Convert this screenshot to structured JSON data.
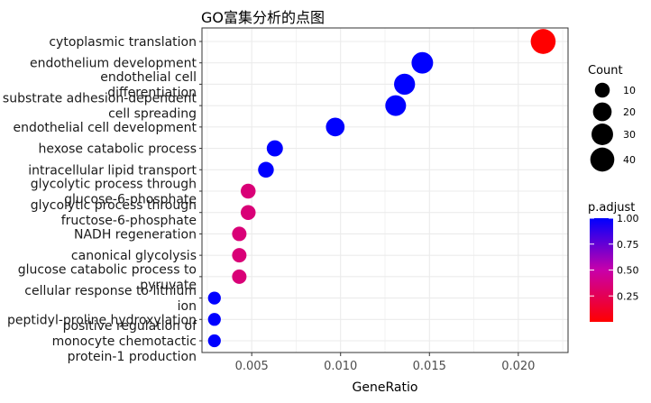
{
  "chart_data": {
    "type": "scatter",
    "title": "GO富集分析的点图",
    "xlabel": "GeneRatio",
    "ylabel": "",
    "xlim": [
      0.0022,
      0.0228
    ],
    "xticks": [
      0.005,
      0.01,
      0.015,
      0.02
    ],
    "xtick_labels": [
      "0.005",
      "0.010",
      "0.015",
      "0.020"
    ],
    "grid": true,
    "categories": [
      "cytoplasmic translation",
      "endothelium development",
      "endothelial cell\ndifferentiation",
      "substrate adhesion-dependent\ncell spreading",
      "endothelial cell development",
      "hexose catabolic process",
      "intracellular lipid transport",
      "glycolytic process through\nglucose-6-phosphate",
      "glycolytic process through\nfructose-6-phosphate",
      "NADH regeneration",
      "canonical glycolysis",
      "glucose catabolic process to\npyruvate",
      "cellular response to lithium\nion",
      "peptidyl-proline hydroxylation",
      "positive regulation of\nmonocyte chemotactic\nprotein-1 production"
    ],
    "x": [
      0.0214,
      0.0146,
      0.0136,
      0.0131,
      0.0097,
      0.0063,
      0.0058,
      0.0048,
      0.0048,
      0.0043,
      0.0043,
      0.0043,
      0.0029,
      0.0029,
      0.0029
    ],
    "count": [
      44,
      30,
      28,
      27,
      20,
      13,
      12,
      10,
      10,
      9,
      9,
      9,
      6,
      6,
      6
    ],
    "p_adjust": [
      0.0,
      1.0,
      1.0,
      1.0,
      1.0,
      1.0,
      1.0,
      0.35,
      0.35,
      0.35,
      0.35,
      0.35,
      1.0,
      1.0,
      1.0
    ],
    "size_legend": {
      "title": "Count",
      "values": [
        10,
        20,
        30,
        40
      ],
      "labels": [
        "10",
        "20",
        "30",
        "40"
      ]
    },
    "color_legend": {
      "title": "p.adjust",
      "range": [
        0.0,
        1.0
      ],
      "ticks": [
        0.25,
        0.5,
        0.75,
        1.0
      ],
      "tick_labels": [
        "0.25",
        "0.50",
        "0.75",
        "1.00"
      ],
      "low_color": "#ff0000",
      "high_color": "#0000ff"
    },
    "legend_position": "right",
    "panel_background": "#ffffff",
    "grid_color": "#ebebeb"
  }
}
